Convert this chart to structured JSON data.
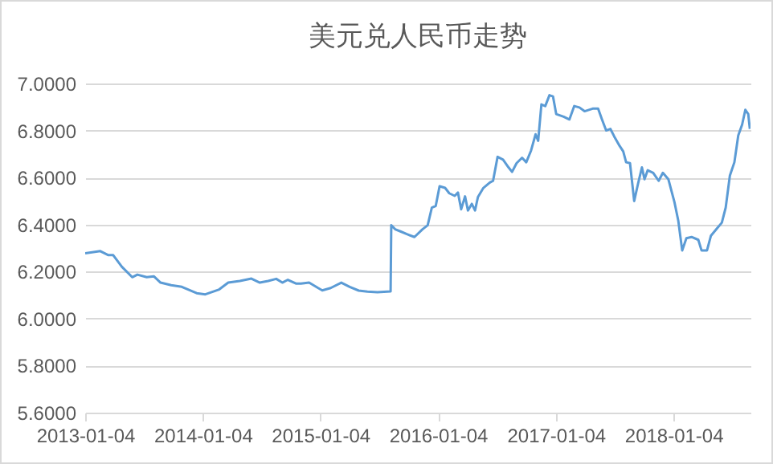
{
  "chart_data": {
    "type": "line",
    "title": "美元兑人民币走势",
    "x": [
      "2013-01-04",
      "2013-02-20",
      "2013-03-17",
      "2013-04-01",
      "2013-04-28",
      "2013-05-30",
      "2013-06-15",
      "2013-07-14",
      "2013-08-05",
      "2013-08-26",
      "2013-09-28",
      "2013-10-31",
      "2013-12-16",
      "2014-01-12",
      "2014-02-24",
      "2014-03-24",
      "2014-04-29",
      "2014-06-04",
      "2014-06-30",
      "2014-07-26",
      "2014-08-20",
      "2014-09-08",
      "2014-09-25",
      "2014-10-20",
      "2014-11-05",
      "2014-11-30",
      "2014-12-28",
      "2015-01-10",
      "2015-02-05",
      "2015-03-10",
      "2015-04-05",
      "2015-05-03",
      "2015-05-30",
      "2015-06-30",
      "2015-08-10",
      "2015-08-12",
      "2015-08-24",
      "2015-09-11",
      "2015-09-28",
      "2015-10-23",
      "2015-11-17",
      "2015-12-03",
      "2015-12-16",
      "2015-12-28",
      "2016-01-09",
      "2016-01-26",
      "2016-02-08",
      "2016-02-25",
      "2016-03-06",
      "2016-03-16",
      "2016-03-28",
      "2016-04-06",
      "2016-04-18",
      "2016-04-28",
      "2016-05-07",
      "2016-05-24",
      "2016-06-13",
      "2016-06-23",
      "2016-07-07",
      "2016-07-24",
      "2016-08-10",
      "2016-08-21",
      "2016-09-04",
      "2016-09-21",
      "2016-10-04",
      "2016-10-19",
      "2016-11-02",
      "2016-11-10",
      "2016-11-20",
      "2016-12-02",
      "2016-12-15",
      "2016-12-26",
      "2017-01-05",
      "2017-01-28",
      "2017-02-15",
      "2017-03-02",
      "2017-03-18",
      "2017-04-03",
      "2017-04-28",
      "2017-05-15",
      "2017-05-27",
      "2017-06-09",
      "2017-06-22",
      "2017-07-04",
      "2017-07-21",
      "2017-08-01",
      "2017-08-10",
      "2017-08-22",
      "2017-09-04",
      "2017-09-16",
      "2017-09-28",
      "2017-10-06",
      "2017-10-16",
      "2017-11-02",
      "2017-11-19",
      "2017-12-02",
      "2017-12-19",
      "2018-01-07",
      "2018-01-19",
      "2018-01-31",
      "2018-02-13",
      "2018-03-01",
      "2018-03-22",
      "2018-04-01",
      "2018-04-18",
      "2018-04-30",
      "2018-05-17",
      "2018-06-03",
      "2018-06-15",
      "2018-06-28",
      "2018-07-12",
      "2018-07-24",
      "2018-08-05",
      "2018-08-15",
      "2018-08-24",
      "2018-08-29"
    ],
    "series": [
      {
        "color": "#5b9bd5",
        "values": [
          6.278,
          6.287,
          6.27,
          6.27,
          6.22,
          6.176,
          6.187,
          6.176,
          6.18,
          6.153,
          6.142,
          6.135,
          6.108,
          6.103,
          6.124,
          6.153,
          6.16,
          6.17,
          6.153,
          6.16,
          6.169,
          6.153,
          6.165,
          6.149,
          6.149,
          6.153,
          6.13,
          6.12,
          6.13,
          6.153,
          6.135,
          6.119,
          6.115,
          6.112,
          6.116,
          6.397,
          6.38,
          6.37,
          6.36,
          6.347,
          6.38,
          6.397,
          6.472,
          6.479,
          6.563,
          6.556,
          6.533,
          6.522,
          6.536,
          6.465,
          6.52,
          6.46,
          6.488,
          6.46,
          6.517,
          6.556,
          6.579,
          6.586,
          6.688,
          6.676,
          6.643,
          6.624,
          6.661,
          6.684,
          6.665,
          6.715,
          6.784,
          6.756,
          6.911,
          6.904,
          6.95,
          6.945,
          6.87,
          6.859,
          6.847,
          6.904,
          6.898,
          6.882,
          6.893,
          6.893,
          6.847,
          6.8,
          6.807,
          6.775,
          6.734,
          6.711,
          6.665,
          6.661,
          6.5,
          6.574,
          6.643,
          6.593,
          6.631,
          6.62,
          6.586,
          6.62,
          6.593,
          6.495,
          6.415,
          6.29,
          6.342,
          6.347,
          6.335,
          6.29,
          6.29,
          6.352,
          6.38,
          6.408,
          6.472,
          6.608,
          6.665,
          6.779,
          6.825,
          6.888,
          6.87,
          6.807
        ]
      }
    ],
    "xlim": [
      "2013-01-04",
      "2018-08-31"
    ],
    "xticks": [
      "2013-01-04",
      "2014-01-04",
      "2015-01-04",
      "2016-01-04",
      "2017-01-04",
      "2018-01-04"
    ],
    "ylim": [
      5.6,
      7.0
    ],
    "yticks": [
      {
        "value": 5.6,
        "label": "5.6000"
      },
      {
        "value": 5.8,
        "label": "5.8000"
      },
      {
        "value": 6.0,
        "label": "6.0000"
      },
      {
        "value": 6.2,
        "label": "6.2000"
      },
      {
        "value": 6.4,
        "label": "6.4000"
      },
      {
        "value": 6.6,
        "label": "6.6000"
      },
      {
        "value": 6.8,
        "label": "6.8000"
      },
      {
        "value": 7.0,
        "label": "7.0000"
      }
    ],
    "grid": "y",
    "marker": "none",
    "line_style": "solid"
  }
}
